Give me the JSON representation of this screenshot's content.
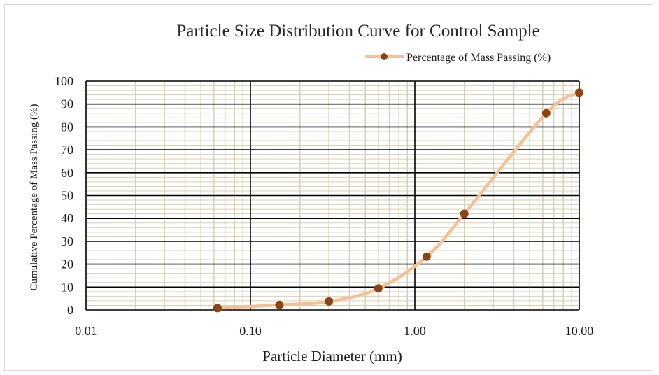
{
  "chart_data": {
    "type": "scatter",
    "title": "Particle Size Distribution Curve for Control Sample",
    "xlabel": "Particle Diameter (mm)",
    "ylabel": "Cumulative Percentage of Mass Passing (%)",
    "x_scale": "log",
    "xlim": [
      0.01,
      10
    ],
    "ylim": [
      0,
      100
    ],
    "x_ticks": [
      "0.01",
      "0.10",
      "1.00",
      "10.00"
    ],
    "y_ticks": [
      "0",
      "10",
      "20",
      "30",
      "40",
      "50",
      "60",
      "70",
      "80",
      "90",
      "100"
    ],
    "grid": true,
    "legend_position": "top-right",
    "series": [
      {
        "name": "Percentage of Mass Passing (%)",
        "color": "#f5c194",
        "marker_color": "#8b4513",
        "smooth_line": true,
        "x": [
          0.063,
          0.15,
          0.3,
          0.6,
          1.18,
          2.0,
          6.3,
          10.0
        ],
        "y": [
          0.8,
          2.2,
          3.7,
          9.4,
          23.3,
          42.0,
          86.0,
          95.0
        ]
      }
    ]
  }
}
